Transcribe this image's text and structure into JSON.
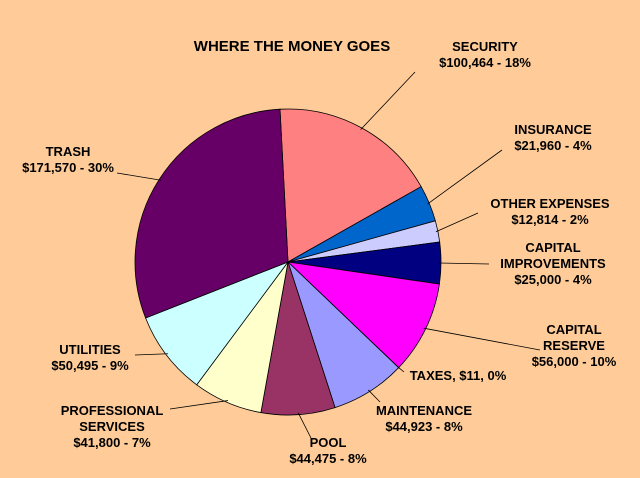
{
  "chart_data": {
    "type": "pie",
    "title": "WHERE THE MONEY GOES",
    "slices": [
      {
        "label_lines": [
          "SECURITY",
          "$100,464  - 18%"
        ],
        "value": 100464,
        "color": "#FF8080"
      },
      {
        "label_lines": [
          "INSURANCE",
          "$21,960  - 4%"
        ],
        "value": 21960,
        "color": "#0066CC"
      },
      {
        "label_lines": [
          "OTHER EXPENSES",
          "$12,814  - 2%"
        ],
        "value": 12814,
        "color": "#CCCCFF"
      },
      {
        "label_lines": [
          "CAPITAL",
          "IMPROVEMENTS",
          "$25,000  - 4%"
        ],
        "value": 25000,
        "color": "#000080"
      },
      {
        "label_lines": [
          "CAPITAL",
          "RESERVE",
          "$56,000  - 10%"
        ],
        "value": 56000,
        "color": "#FF00FF"
      },
      {
        "label_lines": [
          "TAXES, $11, 0%"
        ],
        "value": 11,
        "color": "#FFFF00"
      },
      {
        "label_lines": [
          "MAINTENANCE",
          "$44,923  - 8%"
        ],
        "value": 44923,
        "color": "#9999FF"
      },
      {
        "label_lines": [
          "POOL",
          "$44,475  - 8%"
        ],
        "value": 44475,
        "color": "#993366"
      },
      {
        "label_lines": [
          "PROFESSIONAL",
          "SERVICES",
          "$41,800  - 7%"
        ],
        "value": 41800,
        "color": "#FFFFCC"
      },
      {
        "label_lines": [
          "UTILITIES",
          "$50,495  - 9%"
        ],
        "value": 50495,
        "color": "#CCFFFF"
      },
      {
        "label_lines": [
          "TRASH",
          "$171,570  - 30%"
        ],
        "value": 171570,
        "color": "#660066"
      }
    ]
  }
}
